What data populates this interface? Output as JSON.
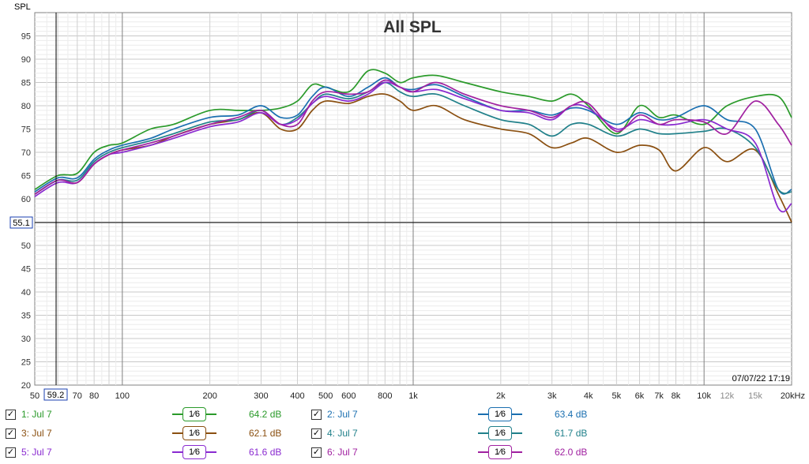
{
  "chart_data": {
    "type": "line",
    "title": "All SPL",
    "ylabel": "SPL",
    "xscale": "log",
    "xlim": [
      50,
      20000
    ],
    "ylim": [
      20,
      100
    ],
    "x_ticks": [
      "50",
      "70",
      "80",
      "100",
      "200",
      "300",
      "400",
      "500",
      "600",
      "800",
      "1k",
      "2k",
      "3k",
      "4k",
      "5k",
      "6k",
      "7k",
      "8k",
      "10k",
      "12k",
      "15k",
      "20kHz"
    ],
    "y_ticks": [
      "20",
      "25",
      "30",
      "35",
      "40",
      "45",
      "50",
      "55",
      "60",
      "65",
      "70",
      "75",
      "80",
      "85",
      "90",
      "95"
    ],
    "cursor": {
      "x_label": "59.2",
      "y_label": "55.1"
    },
    "timestamp": "07/07/22 17:19",
    "x": [
      50,
      60,
      70,
      80,
      90,
      100,
      125,
      150,
      200,
      250,
      300,
      350,
      400,
      450,
      500,
      600,
      700,
      800,
      900,
      1000,
      1200,
      1500,
      2000,
      2500,
      3000,
      3500,
      4000,
      5000,
      6000,
      7000,
      8000,
      10000,
      12000,
      15000,
      18000,
      20000
    ],
    "series": [
      {
        "name": "1: Jul 7",
        "color": "#2a9a2a",
        "values": [
          62,
          65,
          65.5,
          70,
          71.5,
          72,
          75,
          76,
          79,
          79,
          79,
          79.5,
          81,
          84.5,
          84,
          83,
          87.5,
          87,
          85,
          86,
          86.5,
          85,
          83,
          82,
          81,
          82.5,
          80,
          74,
          80,
          77.5,
          78,
          76,
          80,
          82,
          82,
          77.5
        ]
      },
      {
        "name": "2: Jul 7",
        "color": "#1a6fb0",
        "values": [
          61.5,
          64.5,
          64.5,
          68.5,
          70.5,
          71.5,
          73,
          75,
          77.5,
          78,
          80,
          77.5,
          78,
          82,
          84,
          82,
          84,
          86,
          84,
          83.5,
          84.5,
          82,
          79,
          79,
          78,
          79.5,
          79,
          76,
          78.5,
          77,
          77.5,
          80,
          77,
          75,
          62,
          62
        ]
      },
      {
        "name": "3: Jul 7",
        "color": "#8a4f10",
        "values": [
          61,
          64,
          63.5,
          67.5,
          69.5,
          70.5,
          71.5,
          73.5,
          76,
          77,
          78.5,
          75,
          75,
          79,
          81,
          80.5,
          82,
          82.5,
          81,
          79,
          80,
          77,
          75,
          74,
          71,
          72,
          73,
          70,
          71.5,
          70.5,
          66,
          71,
          68,
          70.5,
          61,
          55
        ]
      },
      {
        "name": "4: Jul 7",
        "color": "#20808a",
        "values": [
          61,
          64,
          64,
          68,
          70,
          71,
          72.5,
          74,
          76.5,
          77,
          79,
          76,
          77.5,
          80.5,
          82.5,
          81.5,
          83,
          85,
          83,
          82,
          82.5,
          80,
          77,
          76,
          73.5,
          76,
          76,
          73.5,
          75,
          74,
          74,
          74.5,
          75,
          71,
          62,
          61.5
        ]
      },
      {
        "name": "5: Jul 7",
        "color": "#8a2ad0",
        "values": [
          60.5,
          63.5,
          63.5,
          67.5,
          69.5,
          70,
          71.5,
          73,
          75.5,
          76.5,
          78.5,
          76,
          77,
          80.5,
          82,
          81,
          82.5,
          85,
          84,
          83,
          83.5,
          81.5,
          79,
          78.5,
          77,
          80,
          79.5,
          75,
          77,
          76,
          76,
          77,
          75,
          72,
          58,
          59
        ]
      },
      {
        "name": "6: Jul 7",
        "color": "#a020a0",
        "values": [
          61,
          64,
          63.5,
          67.5,
          69.5,
          70.5,
          72,
          73.5,
          76,
          77.5,
          79,
          76,
          76,
          81,
          83,
          82.5,
          83,
          85.5,
          84,
          83,
          85,
          82.5,
          80,
          79,
          77.5,
          80,
          80.5,
          74.5,
          78,
          76,
          77,
          76.5,
          74,
          81,
          76,
          71.5
        ]
      }
    ]
  },
  "legend": [
    {
      "name": "1: Jul 7",
      "smoothing": "1⁄6",
      "value": "64.2 dB",
      "color": "#2a9a2a"
    },
    {
      "name": "2: Jul 7",
      "smoothing": "1⁄6",
      "value": "63.4 dB",
      "color": "#1a6fb0"
    },
    {
      "name": "3: Jul 7",
      "smoothing": "1⁄6",
      "value": "62.1 dB",
      "color": "#8a4f10"
    },
    {
      "name": "4: Jul 7",
      "smoothing": "1⁄6",
      "value": "61.7 dB",
      "color": "#20808a"
    },
    {
      "name": "5: Jul 7",
      "smoothing": "1⁄6",
      "value": "61.6 dB",
      "color": "#8a2ad0"
    },
    {
      "name": "6: Jul 7",
      "smoothing": "1⁄6",
      "value": "62.0 dB",
      "color": "#a020a0"
    }
  ]
}
